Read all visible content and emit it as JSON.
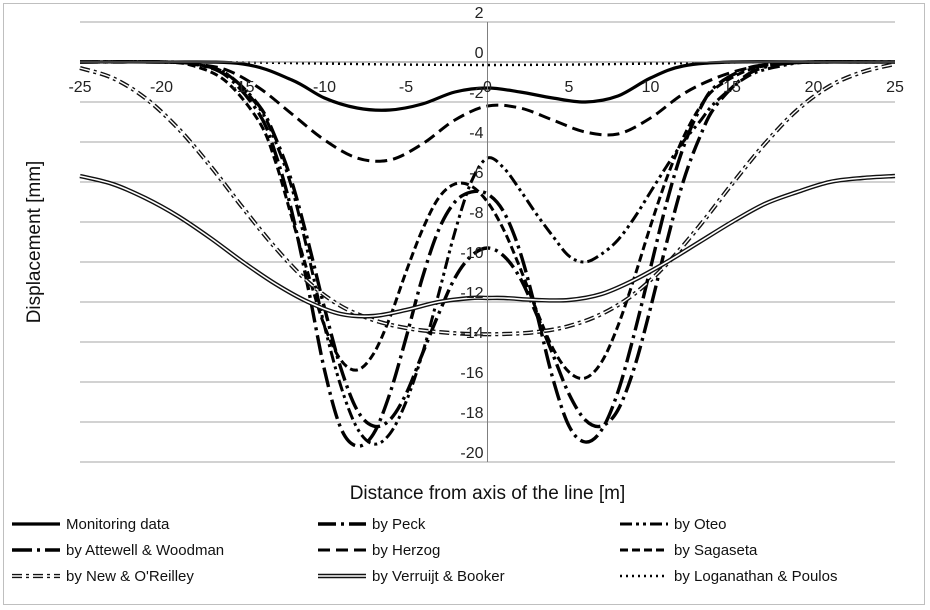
{
  "chart_data": {
    "type": "line",
    "xlabel": "Distance from axis of the line [m]",
    "ylabel": "Displacement [mm]",
    "xlim": [
      -25,
      25
    ],
    "ylim": [
      -20,
      2
    ],
    "x_ticks": [
      -25,
      -20,
      -15,
      -10,
      -5,
      0,
      5,
      10,
      15,
      20,
      25
    ],
    "y_ticks": [
      2,
      0,
      -2,
      -4,
      -6,
      -8,
      -10,
      -12,
      -14,
      -16,
      -18,
      -20
    ],
    "grid": "horizontal",
    "legend_position": "bottom",
    "series": [
      {
        "name": "Monitoring data",
        "style": "solid-thick",
        "x": [
          -25,
          -20,
          -15,
          -12,
          -10,
          -8,
          -6,
          -4,
          -2,
          0,
          2,
          4,
          6,
          8,
          10,
          12,
          15,
          20,
          25
        ],
        "y": [
          0,
          0,
          -0.1,
          -0.9,
          -1.8,
          -2.3,
          -2.4,
          -2.1,
          -1.5,
          -1.3,
          -1.5,
          -1.8,
          -2.0,
          -1.7,
          -0.8,
          -0.2,
          0,
          0,
          0
        ]
      },
      {
        "name": "by Peck",
        "style": "long-dash-dot",
        "x": [
          -25,
          -20,
          -18,
          -16,
          -14,
          -13,
          -12,
          -11,
          -10,
          -9,
          -8,
          -7,
          -6,
          -5,
          -4,
          -3,
          -2,
          -1,
          0,
          1,
          2,
          3,
          4,
          5,
          6,
          7,
          8,
          9,
          10,
          11,
          12,
          13,
          14,
          16,
          18,
          20,
          25
        ],
        "y": [
          0,
          0,
          -0.1,
          -0.6,
          -2.2,
          -3.8,
          -6.0,
          -9.0,
          -12.3,
          -15.3,
          -17.4,
          -18.2,
          -17.9,
          -16.6,
          -14.6,
          -12.6,
          -10.8,
          -9.7,
          -9.3,
          -9.7,
          -10.8,
          -12.6,
          -14.6,
          -16.6,
          -17.9,
          -18.2,
          -17.4,
          -15.3,
          -12.3,
          -9.0,
          -6.0,
          -3.8,
          -2.2,
          -0.6,
          -0.1,
          0,
          0
        ]
      },
      {
        "name": "by Oteo",
        "style": "dash-dot-dot",
        "x": [
          -25,
          -20,
          -18,
          -16,
          -14,
          -13,
          -12,
          -11,
          -10,
          -9,
          -8,
          -7,
          -6,
          -5,
          -4,
          -3,
          -2,
          -1,
          0,
          1,
          2,
          3,
          4,
          5,
          6,
          7,
          8,
          9,
          10,
          11,
          12,
          13,
          14,
          16,
          18,
          20,
          25
        ],
        "y": [
          0,
          0,
          -0.1,
          -0.6,
          -2.3,
          -4.0,
          -6.3,
          -9.6,
          -13.2,
          -16.2,
          -18.3,
          -19.1,
          -18.6,
          -17.0,
          -14.6,
          -11.6,
          -8.5,
          -6.0,
          -4.8,
          -5.3,
          -6.4,
          -7.6,
          -8.7,
          -9.7,
          -10.0,
          -9.6,
          -8.9,
          -7.8,
          -6.5,
          -5.2,
          -4.0,
          -3.0,
          -2.0,
          -0.7,
          -0.2,
          0,
          0
        ]
      },
      {
        "name": "by Attewell & Woodman",
        "style": "long-dash-dot-small",
        "x": [
          -25,
          -20,
          -18,
          -16,
          -14,
          -13,
          -12,
          -11,
          -10,
          -9,
          -8,
          -7,
          -6,
          -5,
          -4,
          -3,
          -2,
          -1,
          0,
          1,
          2,
          3,
          4,
          5,
          6,
          7,
          8,
          9,
          10,
          11,
          12,
          13,
          14,
          16,
          18,
          20,
          25
        ],
        "y": [
          0,
          0,
          -0.1,
          -0.7,
          -2.6,
          -4.6,
          -7.5,
          -11.3,
          -15.4,
          -18.3,
          -19.2,
          -18.6,
          -16.6,
          -13.8,
          -10.8,
          -8.4,
          -7.0,
          -6.5,
          -6.6,
          -7.5,
          -9.5,
          -12.5,
          -15.8,
          -18.2,
          -19.0,
          -18.4,
          -16.5,
          -13.6,
          -10.3,
          -7.0,
          -4.3,
          -2.4,
          -1.2,
          -0.3,
          -0.1,
          0,
          0
        ]
      },
      {
        "name": "by Herzog",
        "style": "dashed",
        "x": [
          -25,
          -20,
          -18,
          -16,
          -14,
          -12,
          -10,
          -8,
          -6,
          -4,
          -2,
          0,
          2,
          4,
          6,
          8,
          10,
          12,
          14,
          16,
          18,
          20,
          25
        ],
        "y": [
          0,
          0,
          -0.1,
          -0.4,
          -1.3,
          -2.6,
          -3.9,
          -4.8,
          -4.9,
          -4.1,
          -2.9,
          -2.2,
          -2.3,
          -2.9,
          -3.5,
          -3.6,
          -2.8,
          -1.6,
          -0.8,
          -0.3,
          -0.1,
          0,
          0
        ]
      },
      {
        "name": "by Sagaseta",
        "style": "dashed-short",
        "x": [
          -25,
          -20,
          -18,
          -16,
          -14,
          -13,
          -12,
          -11,
          -10,
          -9,
          -8,
          -7,
          -6,
          -5,
          -4,
          -3,
          -2,
          -1,
          0,
          1,
          2,
          3,
          4,
          5,
          6,
          7,
          8,
          9,
          10,
          11,
          12,
          13,
          14,
          16,
          18,
          20,
          25
        ],
        "y": [
          0,
          0,
          -0.2,
          -1.0,
          -3.0,
          -5.0,
          -7.8,
          -10.6,
          -13.2,
          -14.9,
          -15.4,
          -14.6,
          -12.8,
          -10.5,
          -8.4,
          -6.8,
          -6.1,
          -6.2,
          -7.0,
          -8.4,
          -10.3,
          -12.4,
          -14.3,
          -15.5,
          -15.8,
          -15.0,
          -13.2,
          -10.8,
          -8.2,
          -5.8,
          -3.8,
          -2.3,
          -1.3,
          -0.4,
          -0.1,
          0,
          0
        ]
      },
      {
        "name": "by New & O'Reilley",
        "style": "double-dash-dot",
        "x": [
          -25,
          -23,
          -21,
          -19,
          -17,
          -15,
          -13,
          -11,
          -9,
          -7,
          -5,
          -3,
          -1,
          1,
          3,
          5,
          7,
          9,
          11,
          13,
          15,
          17,
          19,
          21,
          23,
          25
        ],
        "y": [
          -0.3,
          -0.8,
          -1.8,
          -3.3,
          -5.2,
          -7.3,
          -9.3,
          -11.0,
          -12.2,
          -12.9,
          -13.3,
          -13.5,
          -13.6,
          -13.6,
          -13.5,
          -13.2,
          -12.6,
          -11.6,
          -10.1,
          -8.2,
          -6.1,
          -4.1,
          -2.4,
          -1.2,
          -0.5,
          -0.1
        ]
      },
      {
        "name": "by Verruijt & Booker",
        "style": "double-line",
        "x": [
          -25,
          -23,
          -21,
          -19,
          -17,
          -15,
          -13,
          -11,
          -9,
          -7,
          -5,
          -3,
          -1,
          0,
          1,
          3,
          5,
          7,
          9,
          11,
          13,
          15,
          17,
          19,
          21,
          23,
          25
        ],
        "y": [
          -5.7,
          -6.1,
          -6.8,
          -7.7,
          -8.8,
          -10.0,
          -11.1,
          -12.0,
          -12.6,
          -12.7,
          -12.4,
          -12.0,
          -11.8,
          -11.8,
          -11.8,
          -11.9,
          -11.9,
          -11.6,
          -10.9,
          -10.0,
          -9.0,
          -8.0,
          -7.1,
          -6.5,
          -6.0,
          -5.8,
          -5.7
        ]
      },
      {
        "name": "by Loganathan  & Poulos",
        "style": "dotted",
        "x": [
          -25,
          -20,
          -15,
          -10,
          -5,
          0,
          5,
          10,
          15,
          20,
          25
        ],
        "y": [
          0,
          0,
          -0.02,
          -0.08,
          -0.13,
          -0.15,
          -0.13,
          -0.08,
          -0.02,
          0,
          0
        ]
      }
    ]
  }
}
